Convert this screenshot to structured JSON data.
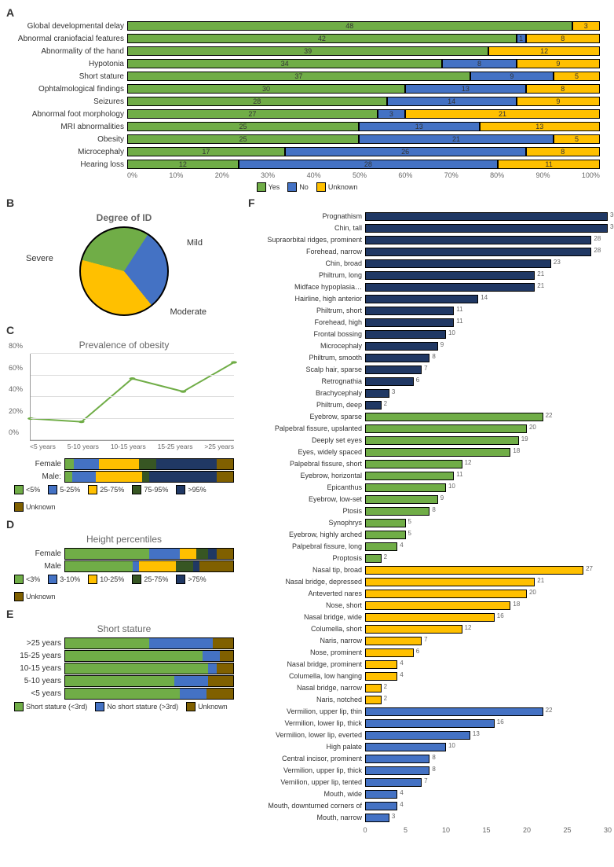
{
  "colors": {
    "green": "#70ad47",
    "blue": "#4472c4",
    "yellow": "#ffc000",
    "darkgreen": "#375623",
    "navy": "#203864",
    "brown": "#806000",
    "grid": "#dddddd",
    "axis": "#999999",
    "text": "#333333",
    "bg": "#ffffff"
  },
  "panelA": {
    "label": "A",
    "legend": [
      {
        "name": "Yes",
        "color": "green"
      },
      {
        "name": "No",
        "color": "blue"
      },
      {
        "name": "Unknown",
        "color": "yellow"
      }
    ],
    "xticks": [
      "0%",
      "10%",
      "20%",
      "30%",
      "40%",
      "50%",
      "60%",
      "70%",
      "80%",
      "90%",
      "100%"
    ],
    "rows": [
      {
        "label": "Global developmental delay",
        "yes": 48,
        "no": 0,
        "unk": 3
      },
      {
        "label": "Abnormal craniofacial features",
        "yes": 42,
        "no": 1,
        "unk": 8
      },
      {
        "label": "Abnormality of the hand",
        "yes": 39,
        "no": 0,
        "unk": 12
      },
      {
        "label": "Hypotonia",
        "yes": 34,
        "no": 8,
        "unk": 9
      },
      {
        "label": "Short stature",
        "yes": 37,
        "no": 9,
        "unk": 5
      },
      {
        "label": "Ophtalmological findings",
        "yes": 30,
        "no": 13,
        "unk": 8
      },
      {
        "label": "Seizures",
        "yes": 28,
        "no": 14,
        "unk": 9
      },
      {
        "label": "Abnormal foot morphology",
        "yes": 27,
        "no": 3,
        "unk": 21
      },
      {
        "label": "MRI abnormalities",
        "yes": 25,
        "no": 13,
        "unk": 13
      },
      {
        "label": "Obesity",
        "yes": 25,
        "no": 21,
        "unk": 5
      },
      {
        "label": "Microcephaly",
        "yes": 17,
        "no": 26,
        "unk": 8
      },
      {
        "label": "Hearing loss",
        "yes": 12,
        "no": 28,
        "unk": 11
      }
    ]
  },
  "panelB": {
    "label": "B",
    "title": "Degree of ID",
    "slices": [
      {
        "name": "Mild",
        "pct": 30,
        "color": "green"
      },
      {
        "name": "Moderate",
        "pct": 30,
        "color": "blue"
      },
      {
        "name": "Severe",
        "pct": 40,
        "color": "yellow"
      }
    ]
  },
  "panelC": {
    "label": "C",
    "title": "Prevalence of obesity",
    "yticks": [
      "0%",
      "20%",
      "40%",
      "60%",
      "80%"
    ],
    "ymax": 80,
    "xcats": [
      "<5 years",
      "5-10 years",
      "10-15 years",
      "15-25 years",
      ">25 years"
    ],
    "values": [
      20,
      17,
      57,
      45,
      72
    ],
    "line_color": "green",
    "bmi_legend": [
      {
        "name": "<5%",
        "color": "green"
      },
      {
        "name": "5-25%",
        "color": "blue"
      },
      {
        "name": "25-75%",
        "color": "yellow"
      },
      {
        "name": "75-95%",
        "color": "darkgreen"
      },
      {
        "name": ">95%",
        "color": "navy"
      },
      {
        "name": "Unknown",
        "color": "brown"
      }
    ],
    "bmi_rows": [
      {
        "label": "Female",
        "segs": [
          5,
          15,
          24,
          10,
          36,
          10
        ]
      },
      {
        "label": "Male:",
        "segs": [
          4,
          14,
          28,
          4,
          40,
          10
        ]
      }
    ]
  },
  "panelD": {
    "label": "D",
    "title": "Height percentiles",
    "legend": [
      {
        "name": "<3%",
        "color": "green"
      },
      {
        "name": "3-10%",
        "color": "blue"
      },
      {
        "name": "10-25%",
        "color": "yellow"
      },
      {
        "name": "25-75%",
        "color": "darkgreen"
      },
      {
        "name": ">75%",
        "color": "navy"
      },
      {
        "name": "Unknown",
        "color": "brown"
      }
    ],
    "rows": [
      {
        "label": "Female",
        "segs": [
          50,
          18,
          10,
          7,
          5,
          10
        ]
      },
      {
        "label": "Male",
        "segs": [
          40,
          4,
          22,
          10,
          4,
          20
        ]
      }
    ]
  },
  "panelE": {
    "label": "E",
    "title": "Short stature",
    "legend": [
      {
        "name": "Short stature (<3rd)",
        "color": "green"
      },
      {
        "name": "No short stature (>3rd)",
        "color": "blue"
      },
      {
        "name": "Unknown",
        "color": "brown"
      }
    ],
    "rows": [
      {
        "label": ">25 years",
        "segs": [
          50,
          38,
          12
        ]
      },
      {
        "label": "15-25 years",
        "segs": [
          82,
          10,
          8
        ]
      },
      {
        "label": "10-15 years",
        "segs": [
          85,
          5,
          10
        ]
      },
      {
        "label": "5-10 years",
        "segs": [
          65,
          20,
          15
        ]
      },
      {
        "label": "<5 years",
        "segs": [
          68,
          16,
          16
        ]
      }
    ],
    "seg_colors": [
      "green",
      "blue",
      "brown"
    ]
  },
  "panelF": {
    "label": "F",
    "xmax": 30,
    "xticks": [
      0,
      5,
      10,
      15,
      20,
      25,
      30
    ],
    "groups": [
      {
        "color": "navy",
        "items": [
          {
            "label": "Prognathism",
            "v": 30
          },
          {
            "label": "Chin, tall",
            "v": 30
          },
          {
            "label": "Supraorbital ridges, prominent",
            "v": 28
          },
          {
            "label": "Forehead, narrow",
            "v": 28
          },
          {
            "label": "Chin, broad",
            "v": 23
          },
          {
            "label": "Philtrum, long",
            "v": 21
          },
          {
            "label": "Midface hypoplasia…",
            "v": 21
          },
          {
            "label": "Hairline, high anterior",
            "v": 14
          },
          {
            "label": "Philtrum, short",
            "v": 11
          },
          {
            "label": "Forehead, high",
            "v": 11
          },
          {
            "label": "Frontal bossing",
            "v": 10
          },
          {
            "label": "Microcephaly",
            "v": 9
          },
          {
            "label": "Philtrum, smooth",
            "v": 8
          },
          {
            "label": "Scalp hair, sparse",
            "v": 7
          },
          {
            "label": "Retrognathia",
            "v": 6
          },
          {
            "label": "Brachycephaly",
            "v": 3
          },
          {
            "label": "Philtrum, deep",
            "v": 2
          }
        ]
      },
      {
        "color": "green",
        "items": [
          {
            "label": "Eyebrow, sparse",
            "v": 22
          },
          {
            "label": "Palpebral fissure, upslanted",
            "v": 20
          },
          {
            "label": "Deeply set eyes",
            "v": 19
          },
          {
            "label": "Eyes, widely spaced",
            "v": 18
          },
          {
            "label": "Palpebral fissure, short",
            "v": 12
          },
          {
            "label": "Eyebrow, horizontal",
            "v": 11
          },
          {
            "label": "Epicanthus",
            "v": 10
          },
          {
            "label": "Eyebrow, low-set",
            "v": 9
          },
          {
            "label": "Ptosis",
            "v": 8
          },
          {
            "label": "Synophrys",
            "v": 5
          },
          {
            "label": "Eyebrow, highly arched",
            "v": 5
          },
          {
            "label": "Palpebral fissure, long",
            "v": 4
          },
          {
            "label": "Proptosis",
            "v": 2
          }
        ]
      },
      {
        "color": "yellow",
        "items": [
          {
            "label": "Nasal tip, broad",
            "v": 27
          },
          {
            "label": "Nasal bridge, depressed",
            "v": 21
          },
          {
            "label": "Anteverted nares",
            "v": 20
          },
          {
            "label": "Nose, short",
            "v": 18
          },
          {
            "label": "Nasal bridge, wide",
            "v": 16
          },
          {
            "label": "Columella, short",
            "v": 12
          },
          {
            "label": "Naris, narrow",
            "v": 7
          },
          {
            "label": "Nose, prominent",
            "v": 6
          },
          {
            "label": "Nasal bridge, prominent",
            "v": 4
          },
          {
            "label": "Columella, low hanging",
            "v": 4
          },
          {
            "label": "Nasal bridge, narrow",
            "v": 2
          },
          {
            "label": "Naris, notched",
            "v": 2
          }
        ]
      },
      {
        "color": "blue",
        "items": [
          {
            "label": "Vermilion, upper lip, thin",
            "v": 22
          },
          {
            "label": "Vermilion, lower lip, thick",
            "v": 16
          },
          {
            "label": "Vermilion, lower lip, everted",
            "v": 13
          },
          {
            "label": "High palate",
            "v": 10
          },
          {
            "label": "Central incisor, prominent",
            "v": 8
          },
          {
            "label": "Vermilion, upper lip, thick",
            "v": 8
          },
          {
            "label": "Vemilion, upper lip, tented",
            "v": 7
          },
          {
            "label": "Mouth, wide",
            "v": 4
          },
          {
            "label": "Mouth, downturned corners of",
            "v": 4
          },
          {
            "label": "Mouth, narrow",
            "v": 3
          }
        ]
      }
    ]
  }
}
